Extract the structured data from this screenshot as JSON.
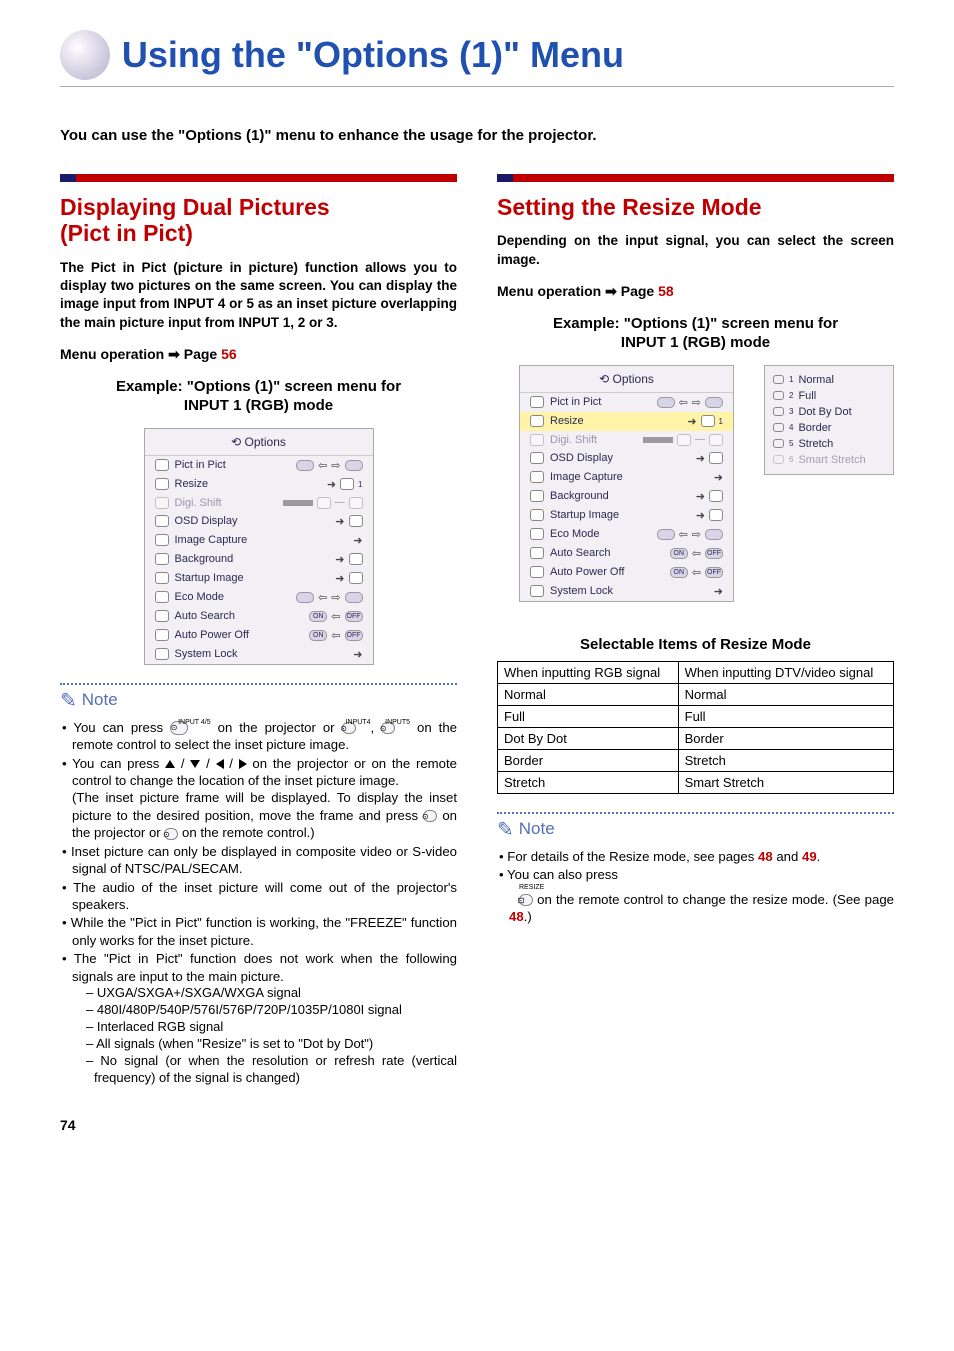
{
  "page_number": "74",
  "title": "Using the \"Options (1)\" Menu",
  "intro": "You can use the \"Options (1)\" menu to enhance the usage for the projector.",
  "left": {
    "heading_l1": "Displaying Dual Pictures",
    "heading_l2_open": "(",
    "heading_l2_mid": "Pict in Pict",
    "heading_l2_close": ")",
    "body": "The Pict in Pict (picture in picture) function allows you to display two pictures on the same screen. You can display the image input from INPUT 4 or 5 as an inset picture overlapping the main picture input from INPUT 1, 2 or 3.",
    "menu_op_label": "Menu operation",
    "menu_op_page_prefix": "Page ",
    "menu_op_page": "56",
    "example_l1": "Example: \"Options (1)\" screen menu for",
    "example_l2": "INPUT 1 (RGB) mode",
    "menu": {
      "title": "Options",
      "rows": [
        {
          "label": "Pict in Pict",
          "dim": false,
          "hl": false,
          "kind": "toggle"
        },
        {
          "label": "Resize",
          "dim": false,
          "hl": false,
          "kind": "opt1"
        },
        {
          "label": "Digi. Shift",
          "dim": true,
          "hl": false,
          "kind": "slider"
        },
        {
          "label": "OSD Display",
          "dim": false,
          "hl": false,
          "kind": "opt"
        },
        {
          "label": "Image Capture",
          "dim": false,
          "hl": false,
          "kind": "go"
        },
        {
          "label": "Background",
          "dim": false,
          "hl": false,
          "kind": "opt"
        },
        {
          "label": "Startup Image",
          "dim": false,
          "hl": false,
          "kind": "opt"
        },
        {
          "label": "Eco Mode",
          "dim": false,
          "hl": false,
          "kind": "toggle"
        },
        {
          "label": "Auto Search",
          "dim": false,
          "hl": false,
          "kind": "toggle2"
        },
        {
          "label": "Auto Power Off",
          "dim": false,
          "hl": false,
          "kind": "toggle2"
        },
        {
          "label": "System Lock",
          "dim": false,
          "hl": false,
          "kind": "go"
        }
      ]
    },
    "note_label": "Note",
    "note1_a": "You can press ",
    "note1_b": " on the projector or ",
    "note1_c": ", ",
    "note1_d": " on the remote control to select the inset picture image.",
    "note2_a": "You can press ",
    "note2_b": " on the projector or on the remote control to change the location of the inset picture image.",
    "note2_c": "(The inset picture frame will be displayed. To display the inset picture to the desired position, move the frame and press ",
    "note2_d": " on the projector or ",
    "note2_e": " on the remote control.)",
    "note3": "Inset picture can only be displayed in composite video or S-video signal of NTSC/PAL/SECAM.",
    "note4": "The audio of the inset picture will come out of the projector's speakers.",
    "note5": "While the \"Pict in Pict\" function is working, the \"FREEZE\" function only works for the inset picture.",
    "note6": "The \"Pict in Pict\" function does not work when the following signals are input to the main picture.",
    "note6_sub": [
      "UXGA/SXGA+/SXGA/WXGA signal",
      "480I/480P/540P/576I/576P/720P/1035P/1080I signal",
      "Interlaced RGB signal",
      "All signals (when \"Resize\" is set to \"Dot by Dot\")",
      "No signal (or when the resolution or refresh rate (vertical frequency) of the signal is changed)"
    ],
    "icon_input45": "INPUT 4/5",
    "icon_input4": "INPUT4",
    "icon_input5": "INPUT5",
    "icon_enter": "ENTER",
    "icon_resize": "RESIZE"
  },
  "right": {
    "heading": "Setting the Resize Mode",
    "body": "Depending on the input signal, you can select the screen image.",
    "menu_op_label": "Menu operation",
    "menu_op_page_prefix": "Page ",
    "menu_op_page": "58",
    "example_l1": "Example: \"Options (1)\" screen menu for",
    "example_l2": "INPUT 1 (RGB) mode",
    "menu": {
      "title": "Options",
      "rows": [
        {
          "label": "Pict in Pict",
          "dim": false,
          "hl": false,
          "kind": "toggle"
        },
        {
          "label": "Resize",
          "dim": false,
          "hl": true,
          "kind": "opt1"
        },
        {
          "label": "Digi. Shift",
          "dim": true,
          "hl": false,
          "kind": "slider"
        },
        {
          "label": "OSD Display",
          "dim": false,
          "hl": false,
          "kind": "opt"
        },
        {
          "label": "Image Capture",
          "dim": false,
          "hl": false,
          "kind": "go"
        },
        {
          "label": "Background",
          "dim": false,
          "hl": false,
          "kind": "opt"
        },
        {
          "label": "Startup Image",
          "dim": false,
          "hl": false,
          "kind": "opt"
        },
        {
          "label": "Eco Mode",
          "dim": false,
          "hl": false,
          "kind": "toggle"
        },
        {
          "label": "Auto Search",
          "dim": false,
          "hl": false,
          "kind": "toggle2"
        },
        {
          "label": "Auto Power Off",
          "dim": false,
          "hl": false,
          "kind": "toggle2"
        },
        {
          "label": "System Lock",
          "dim": false,
          "hl": false,
          "kind": "go"
        }
      ]
    },
    "submenu": [
      {
        "num": "1",
        "label": "Normal",
        "dim": false
      },
      {
        "num": "2",
        "label": "Full",
        "dim": false
      },
      {
        "num": "3",
        "label": "Dot By Dot",
        "dim": false
      },
      {
        "num": "4",
        "label": "Border",
        "dim": false
      },
      {
        "num": "5",
        "label": "Stretch",
        "dim": false
      },
      {
        "num": "6",
        "label": "Smart Stretch",
        "dim": true
      }
    ],
    "table_caption": "Selectable Items of Resize Mode",
    "table_h1": "When inputting RGB signal",
    "table_h2": "When inputting DTV/video signal",
    "table_rows": [
      [
        "Normal",
        "Normal"
      ],
      [
        "Full",
        "Full"
      ],
      [
        "Dot By Dot",
        "Border"
      ],
      [
        "Border",
        "Stretch"
      ],
      [
        "Stretch",
        "Smart Stretch"
      ]
    ],
    "note_label": "Note",
    "rnote1_a": "For details of the Resize mode, see pages ",
    "rnote1_p1": "48",
    "rnote1_b": " and ",
    "rnote1_p2": "49",
    "rnote1_c": ".",
    "rnote2_a": "You can also press ",
    "rnote2_b": " on the remote control to change the resize mode. (See page ",
    "rnote2_p": "48",
    "rnote2_c": ".)"
  },
  "colors": {
    "heading_red": "#c00000",
    "title_blue": "#2050b0",
    "note_blue": "#5570b8",
    "panel_bg": "#f2eff5",
    "highlight": "#fff3a8"
  }
}
